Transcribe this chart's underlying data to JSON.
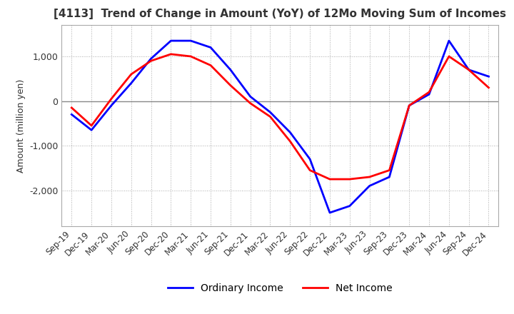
{
  "title": "[4113]  Trend of Change in Amount (YoY) of 12Mo Moving Sum of Incomes",
  "ylabel": "Amount (million yen)",
  "x_labels": [
    "Sep-19",
    "Dec-19",
    "Mar-20",
    "Jun-20",
    "Sep-20",
    "Dec-20",
    "Mar-21",
    "Jun-21",
    "Sep-21",
    "Dec-21",
    "Mar-22",
    "Jun-22",
    "Sep-22",
    "Dec-22",
    "Mar-23",
    "Jun-23",
    "Sep-23",
    "Dec-23",
    "Mar-24",
    "Jun-24",
    "Sep-24",
    "Dec-24"
  ],
  "ordinary_income": [
    -300,
    -650,
    -100,
    400,
    950,
    1350,
    1350,
    1200,
    700,
    100,
    -250,
    -700,
    -1300,
    -2500,
    -2350,
    -1900,
    -1700,
    -100,
    150,
    1350,
    700,
    550
  ],
  "net_income": [
    -150,
    -550,
    50,
    600,
    900,
    1050,
    1000,
    800,
    350,
    -50,
    -350,
    -900,
    -1550,
    -1750,
    -1750,
    -1700,
    -1550,
    -100,
    200,
    1000,
    700,
    300
  ],
  "ordinary_income_color": "#0000FF",
  "net_income_color": "#FF0000",
  "ylim": [
    -2800,
    1700
  ],
  "yticks": [
    -2000,
    -1000,
    0,
    1000
  ],
  "background_color": "#FFFFFF",
  "grid_color": "#AAAAAA",
  "title_color": "#333333",
  "zero_line_color": "#888888",
  "legend_labels": [
    "Ordinary Income",
    "Net Income"
  ]
}
